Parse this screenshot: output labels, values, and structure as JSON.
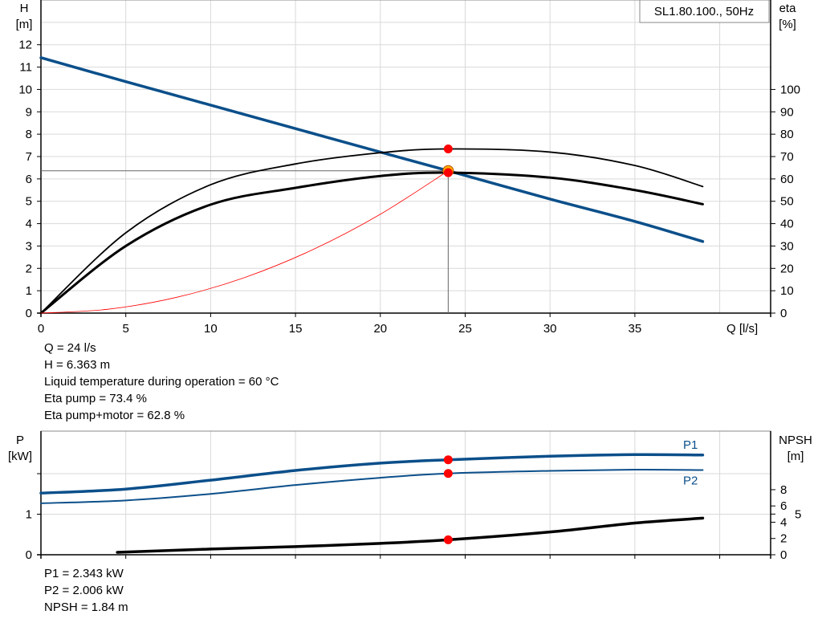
{
  "colors": {
    "pump_curve": "#0b4f8a",
    "efficiency": "#000000",
    "system_curve": "#ff0000",
    "duty_point": "#ff0000",
    "grid": "#d9d9d9"
  },
  "legend": "SL1.80.100., 50Hz",
  "chart_data": [
    {
      "type": "line",
      "xlabel": "Q [l/s]",
      "ylabel_left": [
        "H",
        "[m]"
      ],
      "ylabel_right": [
        "eta",
        "[%]"
      ],
      "xlim": [
        0,
        43
      ],
      "ylim_left": [
        0,
        14
      ],
      "ylim_right": [
        0,
        140
      ],
      "x_ticks": [
        0,
        5,
        10,
        15,
        20,
        25,
        30,
        35
      ],
      "y_ticks_left": [
        0,
        1,
        2,
        3,
        4,
        5,
        6,
        7,
        8,
        9,
        10,
        11,
        12
      ],
      "y_ticks_right": [
        0,
        10,
        20,
        30,
        40,
        50,
        60,
        70,
        80,
        90,
        100
      ],
      "grid": true,
      "series": [
        {
          "axis": "left",
          "x": [
            0,
            5,
            10,
            15,
            20,
            24,
            30,
            35,
            39
          ],
          "y": [
            11.42,
            10.35,
            9.3,
            8.25,
            7.2,
            6.363,
            5.1,
            4.1,
            3.2
          ]
        },
        {
          "axis": "right",
          "x": [
            0,
            5,
            10,
            15,
            20,
            24,
            30,
            35,
            39
          ],
          "y": [
            0,
            35.9,
            57.4,
            66.7,
            71.7,
            73.4,
            72,
            66,
            56.6
          ]
        },
        {
          "axis": "right",
          "x": [
            0,
            5,
            10,
            15,
            20,
            24,
            30,
            35,
            39
          ],
          "y": [
            0,
            30,
            48.5,
            56,
            61.3,
            62.8,
            60.6,
            55,
            48.7
          ]
        },
        {
          "axis": "left",
          "x": [
            0,
            4,
            8,
            12,
            16,
            20,
            24
          ],
          "y": [
            0,
            0.177,
            0.707,
            1.59,
            2.83,
            4.42,
            6.363
          ]
        }
      ],
      "duty_point": {
        "Q": 24,
        "H": 6.363,
        "eta_pump": 73.4,
        "eta_pump_motor": 62.8
      }
    },
    {
      "type": "line",
      "ylabel_left": [
        "P",
        "[kW]"
      ],
      "ylabel_right": [
        "NPSH",
        "[m]"
      ],
      "xlim": [
        0,
        43
      ],
      "ylim_left": [
        0,
        3.05
      ],
      "ylim_right": [
        0,
        15.2
      ],
      "y_ticks_left": [
        0,
        1,
        2
      ],
      "y_tick_labels_left": [
        "0",
        "1",
        ""
      ],
      "y_ticks_right": [
        0,
        2,
        4,
        5,
        6,
        8
      ],
      "grid": true,
      "series": [
        {
          "name": "P1",
          "axis": "left",
          "x": [
            0,
            5,
            10,
            15,
            20,
            24,
            30,
            35,
            39
          ],
          "y": [
            1.52,
            1.62,
            1.84,
            2.08,
            2.26,
            2.343,
            2.43,
            2.47,
            2.46
          ]
        },
        {
          "name": "P2",
          "axis": "left",
          "x": [
            0,
            5,
            10,
            15,
            20,
            24,
            30,
            35,
            39
          ],
          "y": [
            1.27,
            1.34,
            1.5,
            1.72,
            1.9,
            2.006,
            2.07,
            2.1,
            2.09
          ]
        },
        {
          "axis": "right",
          "x": [
            4.5,
            10,
            15,
            20,
            24,
            30,
            35,
            39
          ],
          "y": [
            0.3,
            0.7,
            1.0,
            1.4,
            1.84,
            2.8,
            3.9,
            4.5
          ]
        }
      ],
      "duty_point": {
        "Q": 24,
        "P1": 2.343,
        "P2": 2.006,
        "NPSH": 1.84
      }
    }
  ],
  "info_top": [
    "Q = 24 l/s",
    "H = 6.363 m",
    "Liquid temperature during operation = 60 °C",
    "Eta pump = 73.4 %",
    "Eta pump+motor = 62.8 %"
  ],
  "info_bottom": [
    "P1 = 2.343 kW",
    "P2 = 2.006 kW",
    "NPSH = 1.84 m"
  ]
}
